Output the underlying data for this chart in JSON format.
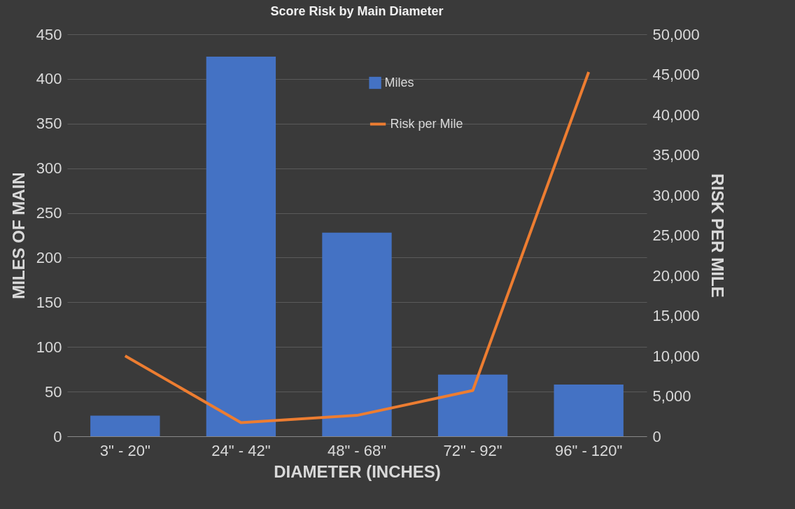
{
  "chart_data": {
    "type": "bar",
    "title": "Score Risk by Main Diameter",
    "xlabel": "DIAMETER (INCHES)",
    "ylabel": "MILES OF MAIN",
    "y2label": "RISK PER MILE",
    "categories": [
      "3\" - 20\"",
      "24\" - 42\"",
      "48\" - 68\"",
      "72\" - 92\"",
      "96\" - 120\""
    ],
    "series": [
      {
        "name": "Miles",
        "color": "#4472c4",
        "values": [
          23,
          425,
          228,
          69,
          58
        ]
      },
      {
        "name": "Risk per Mile",
        "type": "line",
        "axis": "y2",
        "color": "#ed7d31",
        "values": [
          10000,
          1700,
          2600,
          5700,
          45300
        ]
      }
    ],
    "ylim": [
      0,
      450
    ],
    "yticks": [
      0,
      50,
      100,
      150,
      200,
      250,
      300,
      350,
      400,
      450
    ],
    "y2lim": [
      0,
      50000
    ],
    "y2ticks": [
      0,
      {
        "value": 5000,
        "label": "5,000"
      },
      {
        "value": 10000,
        "label": "10,000"
      },
      {
        "value": 15000,
        "label": "15,000"
      },
      {
        "value": 20000,
        "label": "20,000"
      },
      {
        "value": 25000,
        "label": "25,000"
      },
      {
        "value": 30000,
        "label": "30,000"
      },
      {
        "value": 35000,
        "label": "35,000"
      },
      {
        "value": 40000,
        "label": "40,000"
      },
      {
        "value": 45000,
        "label": "45,000"
      },
      {
        "value": 50000,
        "label": "50,000"
      }
    ],
    "grid": "y",
    "legend": "top"
  }
}
